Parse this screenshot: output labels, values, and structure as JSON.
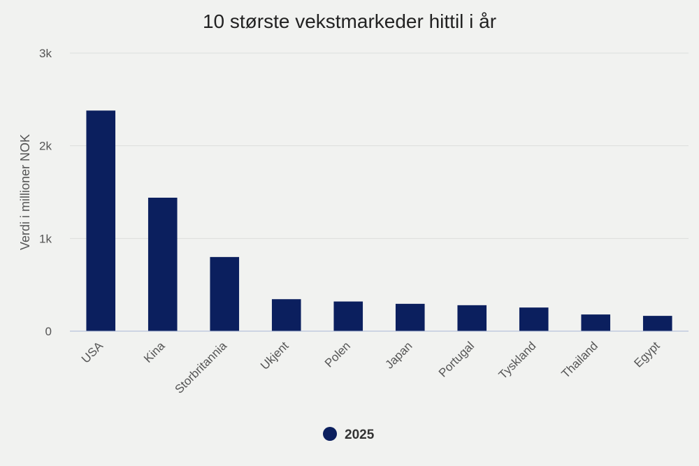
{
  "chart_data": {
    "type": "bar",
    "title": "10 største vekstmarkeder hittil i år",
    "xlabel": "",
    "ylabel": "Verdi i millioner NOK",
    "categories": [
      "USA",
      "Kina",
      "Storbritannia",
      "Ukjent",
      "Polen",
      "Japan",
      "Portugal",
      "Tyskland",
      "Thailand",
      "Egypt"
    ],
    "series": [
      {
        "name": "2025",
        "values": [
          2380,
          1440,
          800,
          345,
          320,
          295,
          280,
          255,
          180,
          165
        ]
      }
    ],
    "ylim": [
      0,
      3000
    ],
    "yticks": [
      0,
      1000,
      2000,
      3000
    ],
    "ytick_labels": [
      "0",
      "1k",
      "2k",
      "3k"
    ],
    "grid": true,
    "legend_position": "bottom-center"
  },
  "colors": {
    "bar": "#0b1f5e",
    "grid": "#dcdedc",
    "axis": "#a9b7d6",
    "background": "#f1f2f0",
    "text": "#333333"
  }
}
